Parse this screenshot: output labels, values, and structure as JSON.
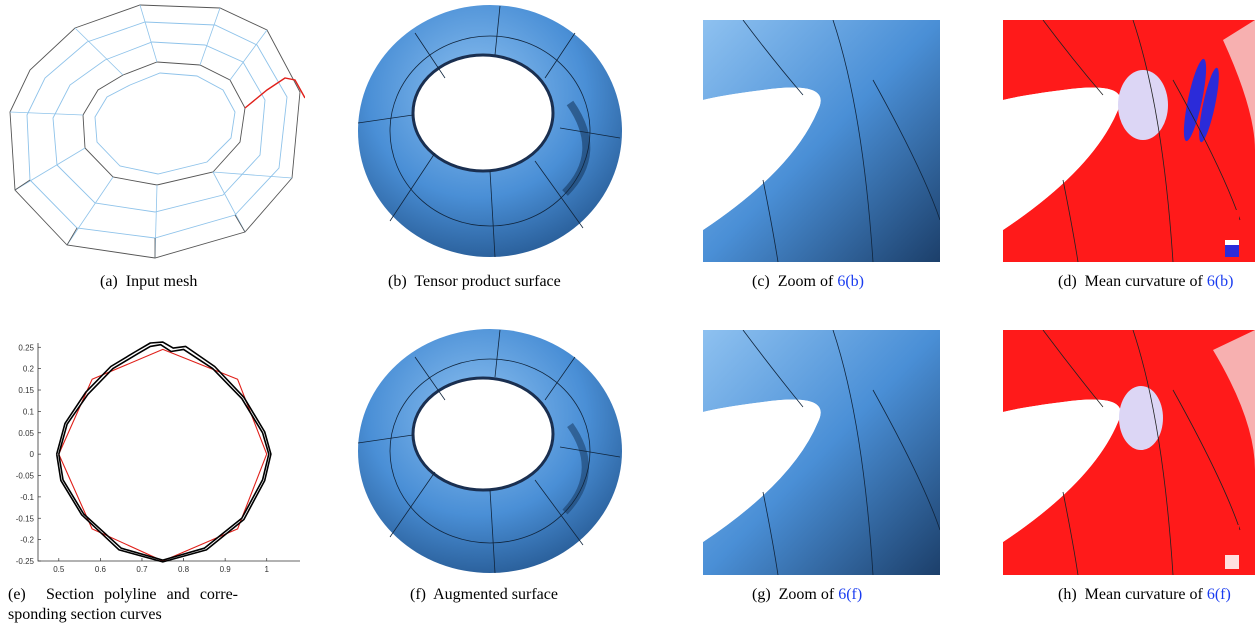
{
  "captions": {
    "a": {
      "label": "(a)",
      "text": "Input mesh"
    },
    "b": {
      "label": "(b)",
      "text": "Tensor product surface"
    },
    "c": {
      "label": "(c)",
      "text": "Zoom of",
      "ref": "6(b)"
    },
    "d": {
      "label": "(d)",
      "text": "Mean curvature of",
      "ref": "6(b)"
    },
    "e": {
      "label": "(e)",
      "text": "Section polyline and corre- sponding section curves"
    },
    "f": {
      "label": "(f)",
      "text": "Augmented surface"
    },
    "g": {
      "label": "(g)",
      "text": "Zoom of",
      "ref": "6(f)"
    },
    "h": {
      "label": "(h)",
      "text": "Mean curvature of",
      "ref": "6(f)"
    }
  },
  "colors": {
    "surface": "#4a8fd6",
    "curvature_high": "#ff1a1a",
    "curvature_low": "#2b2bd9",
    "polyline": "#e0201a",
    "mesh_outer": "#555555",
    "mesh_inner": "#8fc3ea",
    "link": "#1a3cf0"
  },
  "chart_data": {
    "type": "line",
    "title": "",
    "xlabel": "",
    "ylabel": "",
    "xlim": [
      0.45,
      1.08
    ],
    "ylim": [
      -0.25,
      0.26
    ],
    "xticks": [
      0.5,
      0.6,
      0.7,
      0.8,
      0.9,
      1
    ],
    "yticks": [
      0.25,
      0.2,
      0.15,
      0.1,
      0.05,
      0,
      -0.05,
      -0.1,
      -0.15,
      -0.2,
      -0.25
    ],
    "series": [
      {
        "color": "#e0201a",
        "x": [
          0.5,
          0.58,
          0.75,
          0.93,
          1.0,
          0.93,
          0.75,
          0.58,
          0.5
        ],
        "y": [
          0.0,
          0.175,
          0.245,
          0.175,
          0.0,
          -0.175,
          -0.25,
          -0.175,
          0.0
        ]
      },
      {
        "color": "#000000",
        "x": [
          0.5,
          0.52,
          0.57,
          0.63,
          0.69,
          0.72,
          0.745,
          0.77,
          0.8,
          0.87,
          0.94,
          0.99,
          1.005,
          0.99,
          0.94,
          0.85,
          0.75,
          0.65,
          0.56,
          0.51,
          0.5
        ],
        "y": [
          0.0,
          0.07,
          0.14,
          0.2,
          0.235,
          0.252,
          0.256,
          0.24,
          0.245,
          0.2,
          0.13,
          0.05,
          0.0,
          -0.06,
          -0.15,
          -0.22,
          -0.248,
          -0.22,
          -0.14,
          -0.06,
          0.0
        ]
      },
      {
        "color": "#000000",
        "x": [
          0.495,
          0.515,
          0.565,
          0.625,
          0.685,
          0.72,
          0.75,
          0.775,
          0.805,
          0.875,
          0.945,
          0.995,
          1.01,
          0.995,
          0.945,
          0.855,
          0.75,
          0.645,
          0.555,
          0.505,
          0.495
        ],
        "y": [
          0.0,
          0.072,
          0.145,
          0.205,
          0.24,
          0.26,
          0.262,
          0.248,
          0.252,
          0.205,
          0.133,
          0.052,
          0.0,
          -0.062,
          -0.153,
          -0.224,
          -0.252,
          -0.224,
          -0.142,
          -0.062,
          0.0
        ]
      }
    ]
  }
}
